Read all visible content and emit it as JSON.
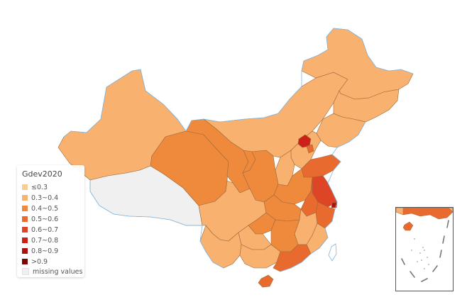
{
  "legend": {
    "title": "Gdev2020",
    "items": [
      {
        "label": "≤0.3",
        "color": "#f7cf93"
      },
      {
        "label": "0.3~0.4",
        "color": "#f8b16f"
      },
      {
        "label": "0.4~0.5",
        "color": "#ef8a3c"
      },
      {
        "label": "0.5~0.6",
        "color": "#e86a2f"
      },
      {
        "label": "0.6~0.7",
        "color": "#de4526"
      },
      {
        "label": "0.7~0.8",
        "color": "#cc2118"
      },
      {
        "label": "0.8~0.9",
        "color": "#a9120f"
      },
      {
        "label": ">0.9",
        "color": "#7c0606"
      },
      {
        "label": "missing values",
        "color": "#f0f0f0"
      }
    ]
  },
  "colors": {
    "border": "#9d6a3e",
    "coast": "#7fb8e3",
    "missing": "#f0f0f0"
  }
}
